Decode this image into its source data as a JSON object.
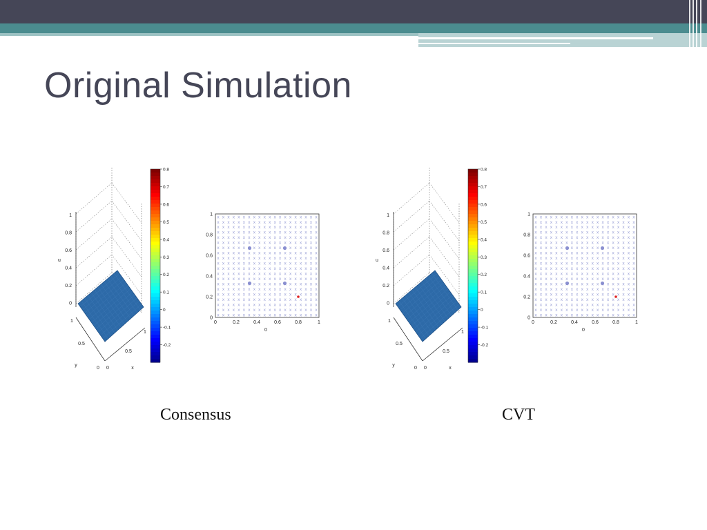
{
  "slide": {
    "title": "Original Simulation",
    "captions": [
      "Consensus",
      "CVT"
    ]
  },
  "colorbar": {
    "ticks": [
      "0.8",
      "0.7",
      "0.6",
      "0.5",
      "0.4",
      "0.3",
      "0.2",
      "0.1",
      "0",
      "-0.1",
      "-0.2"
    ],
    "range": [
      -0.3,
      0.8
    ]
  },
  "surface_plot": {
    "z_ticks": [
      "1",
      "0.8",
      "0.6",
      "0.4",
      "0.2",
      "0"
    ],
    "y_ticks": [
      "1",
      "0.5",
      "0"
    ],
    "x_ticks": [
      "0",
      "0.5",
      "1"
    ],
    "x_label": "x",
    "y_label": "y",
    "z_label": "u"
  },
  "scatter_plot": {
    "y_ticks": [
      "1",
      "0.8",
      "0.6",
      "0.4",
      "0.2",
      "0"
    ],
    "x_ticks": [
      "0",
      "0.2",
      "0.4",
      "0.6",
      "0.8",
      "1"
    ],
    "x_label": "0",
    "grid_marker": "x",
    "grid_count": 20
  },
  "chart_data": [
    {
      "type": "scatter",
      "title": "",
      "xlabel": "0",
      "ylabel": "",
      "xlim": [
        0,
        1
      ],
      "ylim": [
        0,
        1
      ],
      "series": [
        {
          "values": [
            {
              "x": 0.33,
              "y": 0.67
            },
            {
              "x": 0.67,
              "y": 0.67
            },
            {
              "x": 0.33,
              "y": 0.33
            },
            {
              "x": 0.67,
              "y": 0.33
            }
          ],
          "color": "#8a8fd0"
        },
        {
          "values": [
            {
              "x": 0.8,
              "y": 0.2
            }
          ],
          "color": "#e02020"
        }
      ]
    },
    {
      "type": "scatter",
      "title": "",
      "xlabel": "0",
      "ylabel": "",
      "xlim": [
        0,
        1
      ],
      "ylim": [
        0,
        1
      ],
      "series": [
        {
          "values": [
            {
              "x": 0.33,
              "y": 0.67
            },
            {
              "x": 0.67,
              "y": 0.67
            },
            {
              "x": 0.33,
              "y": 0.33
            },
            {
              "x": 0.67,
              "y": 0.33
            }
          ],
          "color": "#8a8fd0"
        },
        {
          "values": [
            {
              "x": 0.8,
              "y": 0.2
            }
          ],
          "color": "#e02020"
        }
      ]
    }
  ],
  "colors": {
    "topbar": "#454657",
    "accent": "#4b8c8f",
    "title": "#454657",
    "surface": "#2d6aa8",
    "grid_marker": "#9aa0d6"
  }
}
